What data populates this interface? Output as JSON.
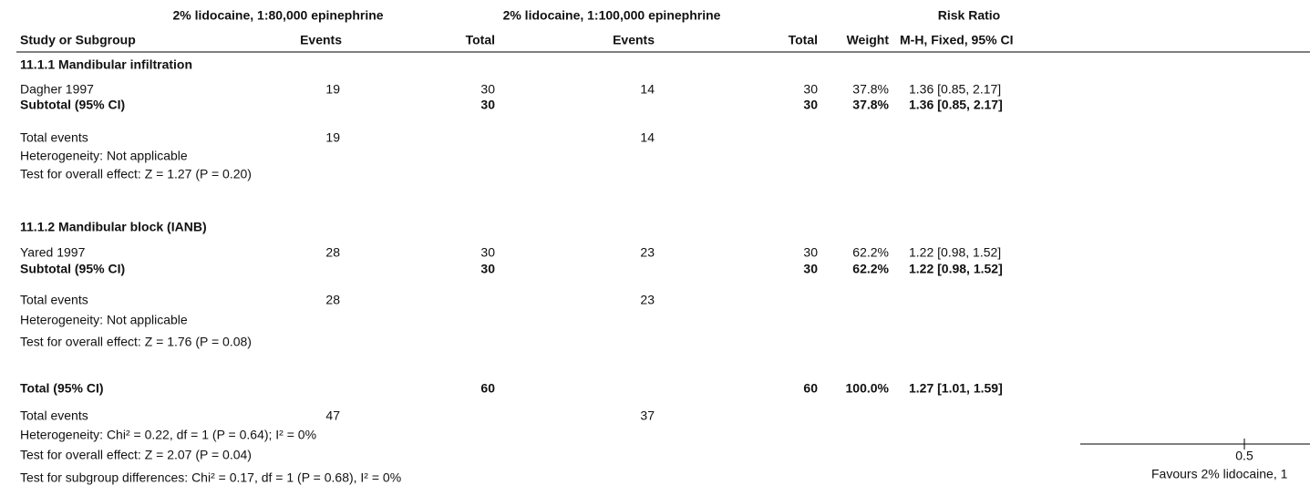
{
  "header": {
    "group1": "2% lidocaine, 1:80,000 epinephrine",
    "group2": "2% lidocaine, 1:100,000 epinephrine",
    "effect": "Risk Ratio",
    "columns": {
      "study": "Study or Subgroup",
      "events1": "Events",
      "total1": "Total",
      "events2": "Events",
      "total2": "Total",
      "weight": "Weight",
      "ci": "M-H, Fixed, 95% CI"
    }
  },
  "table": {
    "rows": [
      {
        "study": "11.1.1 Mandibular infiltration"
      },
      {
        "study": "Dagher 1997",
        "events1": 19,
        "total1": 30,
        "events2": 14,
        "total2": 30,
        "weight": "37.8%",
        "ci": "1.36 [0.85, 2.17]"
      },
      {
        "study": "Subtotal (95% CI)",
        "total1": 30,
        "total2": 30,
        "weight": "37.8%",
        "ci": "1.36 [0.85, 2.17]"
      },
      {
        "study": "Total events",
        "events1": 19,
        "events2": 14
      },
      {
        "study": "Heterogeneity: Not applicable"
      },
      {
        "study": "Test for overall effect: Z = 1.27 (P = 0.20)"
      },
      {
        "study": "11.1.2 Mandibular block (IANB)"
      },
      {
        "study": "Yared 1997",
        "events1": 28,
        "total1": 30,
        "events2": 23,
        "total2": 30,
        "weight": "62.2%",
        "ci": "1.22 [0.98, 1.52]"
      },
      {
        "study": "Subtotal (95% CI)",
        "total1": 30,
        "total2": 30,
        "weight": "62.2%",
        "ci": "1.22 [0.98, 1.52]"
      },
      {
        "study": "Total events",
        "events1": 28,
        "events2": 23
      },
      {
        "study": "Heterogeneity: Not applicable"
      },
      {
        "study": "Test for overall effect: Z = 1.76 (P = 0.08)"
      },
      {
        "study": "Total (95% CI)",
        "total1": 60,
        "total2": 60,
        "weight": "100.0%",
        "ci": "1.27 [1.01, 1.59]"
      },
      {
        "study": "Total events",
        "events1": 47,
        "events2": 37
      },
      {
        "study": "Heterogeneity: Chi² = 0.22, df = 1 (P = 0.64); I² = 0%"
      },
      {
        "study": "Test for overall effect: Z = 2.07 (P = 0.04)"
      },
      {
        "study": "Test for subgroup differences: Chi² = 0.17, df = 1 (P = 0.68), I² = 0%"
      }
    ]
  },
  "axis": {
    "ticks": [
      0.5
    ],
    "label": "Favours 2% lidocaine, 1"
  }
}
